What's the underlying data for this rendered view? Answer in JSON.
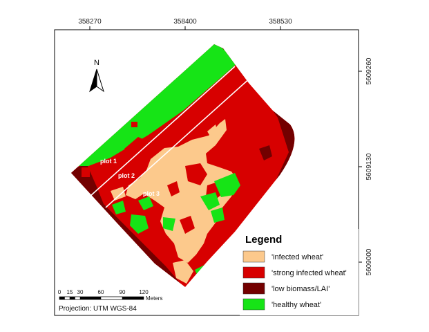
{
  "map": {
    "x_ticks": [
      "358270",
      "358400",
      "358530"
    ],
    "y_ticks": [
      "5609260",
      "5609130",
      "5609000"
    ],
    "north_label": "N",
    "plots": [
      "plot 1",
      "plot 2",
      "plot 3"
    ],
    "colors": {
      "infected": "#fcc98c",
      "strong_infected": "#d70000",
      "low_biomass": "#730000",
      "healthy": "#16e416"
    }
  },
  "legend": {
    "title": "Legend",
    "items": [
      {
        "label": "'infected wheat'",
        "color": "#fcc98c"
      },
      {
        "label": "'strong infected wheat'",
        "color": "#d70000"
      },
      {
        "label": "'low biomass/LAI'",
        "color": "#730000"
      },
      {
        "label": "'healthy wheat'",
        "color": "#16e416"
      }
    ]
  },
  "scale_bar": {
    "ticks": [
      "0",
      "15",
      "30",
      "60",
      "90",
      "120"
    ],
    "unit": "Meters"
  },
  "projection": "Projection: UTM WGS-84"
}
